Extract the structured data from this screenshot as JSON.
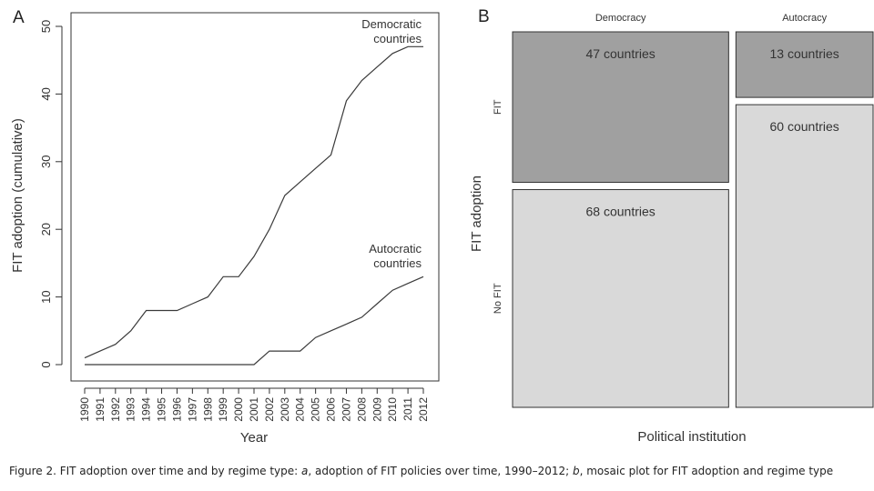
{
  "chart_data": [
    {
      "panel_label": "A",
      "type": "line",
      "xlabel": "Year",
      "ylabel": "FIT adoption (cumulative)",
      "ylim": [
        0,
        50
      ],
      "yticks": [
        "0",
        "10",
        "20",
        "30",
        "40",
        "50"
      ],
      "x": [
        "1990",
        "1991",
        "1992",
        "1993",
        "1994",
        "1995",
        "1996",
        "1997",
        "1998",
        "1999",
        "2000",
        "2001",
        "2002",
        "2003",
        "2004",
        "2005",
        "2006",
        "2007",
        "2008",
        "2009",
        "2010",
        "2011",
        "2012"
      ],
      "series": [
        {
          "name_lines": [
            "Democratic",
            "countries"
          ],
          "values": [
            1,
            2,
            3,
            5,
            8,
            8,
            8,
            9,
            10,
            13,
            13,
            16,
            20,
            25,
            27,
            29,
            31,
            39,
            42,
            44,
            46,
            47,
            47
          ]
        },
        {
          "name_lines": [
            "Autocratic",
            "countries"
          ],
          "values": [
            0,
            0,
            0,
            0,
            0,
            0,
            0,
            0,
            0,
            0,
            0,
            0,
            2,
            2,
            2,
            4,
            5,
            6,
            7,
            9,
            11,
            12,
            13
          ]
        }
      ],
      "grid": false
    },
    {
      "panel_label": "B",
      "type": "mosaic",
      "xlabel": "Political institution",
      "ylabel": "FIT adoption",
      "columns": [
        "Democracy",
        "Autocracy"
      ],
      "rows": [
        "FIT",
        "No FIT"
      ],
      "counts": [
        [
          47,
          13
        ],
        [
          68,
          60
        ]
      ],
      "cell_labels": [
        [
          "47 countries",
          "13 countries"
        ],
        [
          "68 countries",
          "60 countries"
        ]
      ],
      "colors": {
        "FIT": "#a0a0a0",
        "No FIT": "#d9d9d9",
        "stroke": "#333333"
      }
    }
  ],
  "caption": {
    "prefix": "Figure 2. FIT adoption over time and by regime type: ",
    "a": "a",
    "middle": ", adoption of FIT policies over time, 1990–2012; ",
    "b": "b",
    "suffix": ", mosaic plot for FIT adoption and regime type"
  }
}
